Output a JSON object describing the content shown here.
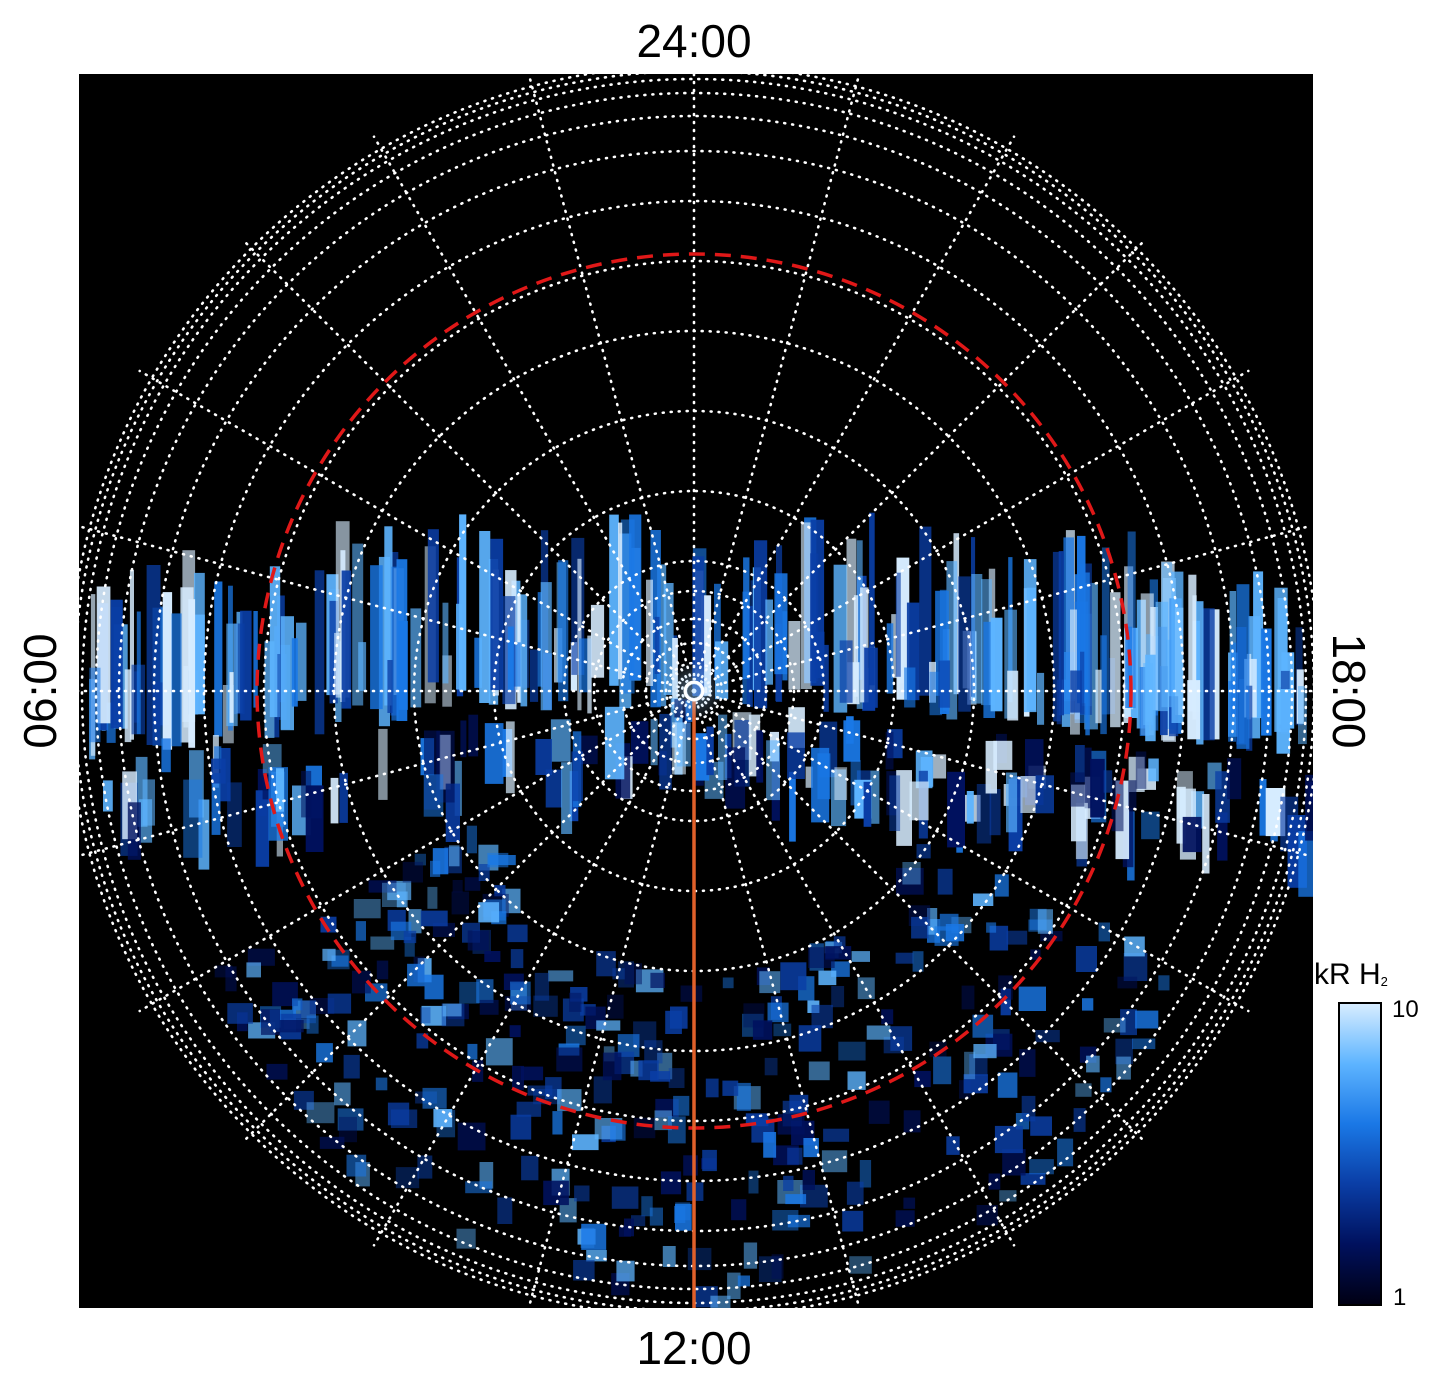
{
  "time_labels": {
    "top": "24:00",
    "bottom": "12:00",
    "left": "06:00",
    "right": "18:00"
  },
  "colorbar": {
    "title": "kR H",
    "title_subscript": "2",
    "max_label": "10",
    "min_label": "1",
    "colors": [
      "#000014",
      "#00115e",
      "#0a3ea6",
      "#1a78e6",
      "#5db4ff",
      "#d6ecff"
    ]
  },
  "colors": {
    "background": "#000000",
    "grid": "#ffffff",
    "reference_circle": "#e01818",
    "noon_meridian": "#e0602a"
  },
  "chart_data": {
    "type": "heatmap",
    "projection": "polar",
    "title": "",
    "local_time_axis": [
      "24:00",
      "06:00",
      "12:00",
      "18:00"
    ],
    "colorbar_range": [
      1,
      10
    ],
    "colorbar_scale": "log",
    "colorbar_unit": "kR H2",
    "grid": true
  }
}
